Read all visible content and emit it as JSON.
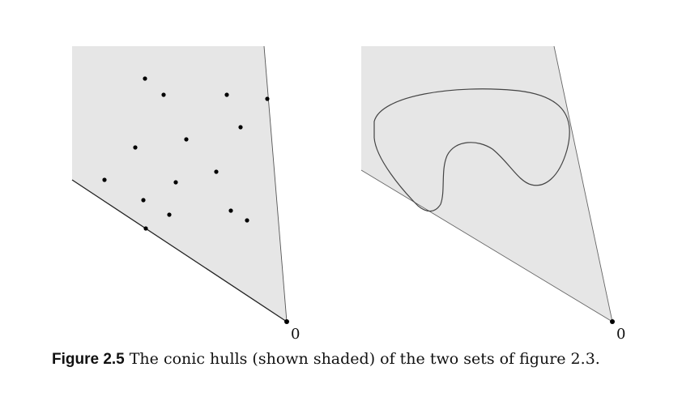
{
  "figure": {
    "left_panel": {
      "origin_label": "0",
      "point_count": 15
    },
    "right_panel": {
      "origin_label": "0"
    },
    "colors": {
      "hull_fill": "#e6e6e6",
      "line": "#333333",
      "point": "#000000"
    }
  },
  "caption": {
    "label": "Figure 2.5",
    "text": "The conic hulls (shown shaded) of the two sets of figure 2.3."
  }
}
